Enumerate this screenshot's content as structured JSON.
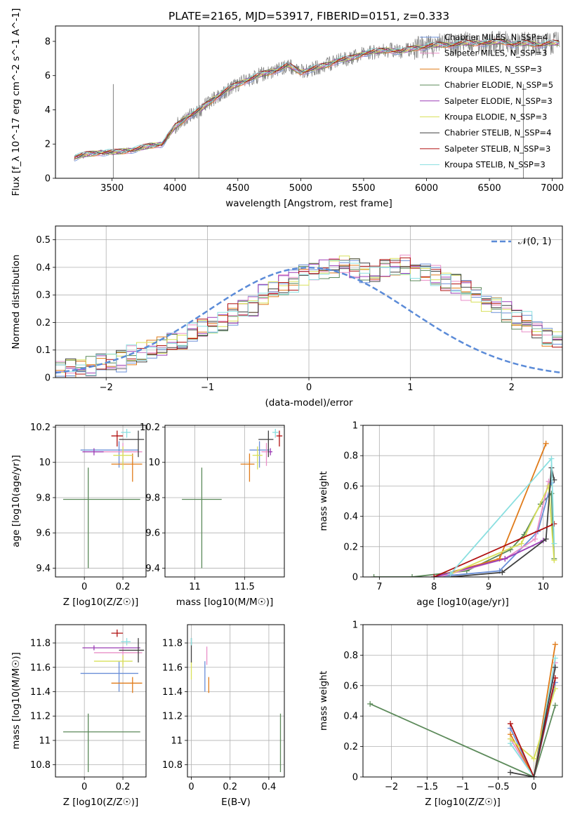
{
  "title": "PLATE=2165, MJD=53917, FIBERID=0151, z=0.333",
  "colors": {
    "Chabrier MILES": "#6a8fd8",
    "Salpeter MILES": "#e98fc8",
    "Kroupa MILES": "#e07b1a",
    "Chabrier ELODIE": "#5c8a5a",
    "Salpeter ELODIE": "#9b3db5",
    "Kroupa ELODIE": "#d8e05a",
    "Chabrier STELIB": "#404040",
    "Salpeter STELIB": "#b01010",
    "Kroupa STELIB": "#8adfe0",
    "data": "#808080",
    "normal": "#5b8bd8"
  },
  "chart_data": [
    {
      "id": "spectrum",
      "type": "line",
      "xlabel": "wavelength [Angstrom, rest frame]",
      "ylabel": "Flux [f_λ 10^-17 erg cm^-2 s^-1 A^-1]",
      "xlim": [
        3050,
        7080
      ],
      "ylim": [
        0,
        8.9
      ],
      "xticks": [
        3500,
        4000,
        4500,
        5000,
        5500,
        6000,
        6500,
        7000
      ],
      "yticks": [
        0,
        2,
        4,
        6,
        8
      ],
      "grid": false,
      "legend_position": "top-right",
      "legend": [
        {
          "label": "Chabrier MILES, N_SSP=4",
          "color_key": "Chabrier MILES"
        },
        {
          "label": "Salpeter MILES, N_SSP=3",
          "color_key": "Salpeter MILES"
        },
        {
          "label": "Kroupa MILES, N_SSP=3",
          "color_key": "Kroupa MILES"
        },
        {
          "label": "Chabrier ELODIE, N_SSP=5",
          "color_key": "Chabrier ELODIE"
        },
        {
          "label": "Salpeter ELODIE, N_SSP=3",
          "color_key": "Salpeter ELODIE"
        },
        {
          "label": "Kroupa ELODIE, N_SSP=3",
          "color_key": "Kroupa ELODIE"
        },
        {
          "label": "Chabrier STELIB, N_SSP=4",
          "color_key": "Chabrier STELIB"
        },
        {
          "label": "Salpeter STELIB, N_SSP=3",
          "color_key": "Salpeter STELIB"
        },
        {
          "label": "Kroupa STELIB, N_SSP=3",
          "color_key": "Kroupa STELIB"
        }
      ],
      "continuum": {
        "x": [
          3200,
          3300,
          3400,
          3500,
          3600,
          3700,
          3800,
          3900,
          4000,
          4100,
          4200,
          4300,
          4400,
          4500,
          4600,
          4700,
          4800,
          4900,
          5000,
          5100,
          5200,
          5300,
          5400,
          5500,
          5600,
          5700,
          5800,
          5900,
          6000,
          6100,
          6200,
          6300,
          6400,
          6500,
          6600,
          6700,
          6800,
          6900,
          7000,
          7050
        ],
        "y": [
          1.2,
          1.4,
          1.5,
          1.5,
          1.6,
          1.7,
          1.9,
          2.0,
          3.0,
          3.6,
          4.0,
          4.6,
          5.1,
          5.5,
          5.8,
          6.1,
          6.3,
          6.6,
          6.2,
          6.4,
          6.6,
          6.9,
          7.0,
          7.3,
          7.4,
          7.5,
          7.4,
          7.6,
          7.7,
          7.8,
          7.8,
          7.9,
          7.9,
          7.9,
          8.0,
          7.8,
          7.9,
          7.8,
          7.9,
          7.9
        ]
      },
      "data_gaps": [
        3510,
        4190,
        6770
      ]
    },
    {
      "id": "residual-hist",
      "type": "line",
      "xlabel": "(data-model)/error",
      "ylabel": "Normed distribution",
      "xlim": [
        -2.5,
        2.5
      ],
      "ylim": [
        0,
        0.55
      ],
      "xticks": [
        -2,
        -1,
        0,
        1,
        2
      ],
      "yticks": [
        0.0,
        0.1,
        0.2,
        0.3,
        0.4,
        0.5
      ],
      "grid": true,
      "legend_position": "top-right",
      "legend_label": "𝒩(0, 1)",
      "bin_width": 0.1,
      "bin_start": -2.5,
      "base_values": [
        0.02,
        0.03,
        0.03,
        0.04,
        0.05,
        0.05,
        0.06,
        0.08,
        0.09,
        0.1,
        0.11,
        0.13,
        0.14,
        0.16,
        0.18,
        0.19,
        0.21,
        0.23,
        0.25,
        0.26,
        0.3,
        0.32,
        0.34,
        0.35,
        0.37,
        0.38,
        0.39,
        0.4,
        0.41,
        0.4,
        0.38,
        0.38,
        0.39,
        0.4,
        0.41,
        0.39,
        0.38,
        0.37,
        0.35,
        0.34,
        0.32,
        0.3,
        0.27,
        0.26,
        0.24,
        0.21,
        0.2,
        0.17,
        0.14,
        0.13,
        0.12,
        0.1,
        0.09,
        0.07,
        0.06,
        0.05,
        0.04,
        0.03,
        0.03,
        0.02
      ]
    },
    {
      "id": "age-vs-z",
      "type": "scatter",
      "xlabel": "Z [log10(Z/Z☉)]",
      "ylabel": "age  [log10(age/yr)]",
      "xlim": [
        -0.15,
        0.32
      ],
      "ylim": [
        9.35,
        10.21
      ],
      "xticks": [
        0.0,
        0.2
      ],
      "yticks": [
        9.4,
        9.6,
        9.8,
        10.0,
        10.2
      ],
      "grid": true,
      "points": [
        {
          "key": "Chabrier ELODIE",
          "x": 0.02,
          "xerr": [
            0.13,
            0.27
          ],
          "y": 9.79,
          "yerr": [
            0.39,
            0.18
          ]
        },
        {
          "key": "Chabrier MILES",
          "x": 0.18,
          "xerr": [
            0.2,
            0.1
          ],
          "y": 10.07,
          "yerr": [
            0.1,
            0.05
          ]
        },
        {
          "key": "Salpeter MILES",
          "x": 0.2,
          "xerr": [
            0.15,
            0.1
          ],
          "y": 10.06,
          "yerr": [
            0.08,
            0.05
          ]
        },
        {
          "key": "Kroupa MILES",
          "x": 0.25,
          "xerr": [
            0.11,
            0.05
          ],
          "y": 9.99,
          "yerr": [
            0.1,
            0.06
          ]
        },
        {
          "key": "Salpeter ELODIE",
          "x": 0.05,
          "xerr": [
            0.06,
            0.05
          ],
          "y": 10.06,
          "yerr": [
            0.02,
            0.02
          ]
        },
        {
          "key": "Kroupa ELODIE",
          "x": 0.2,
          "xerr": [
            0.05,
            0.05
          ],
          "y": 10.04,
          "yerr": [
            0.08,
            0.05
          ]
        },
        {
          "key": "Chabrier STELIB",
          "x": 0.28,
          "xerr": [
            0.1,
            0.03
          ],
          "y": 10.13,
          "yerr": [
            0.1,
            0.05
          ]
        },
        {
          "key": "Salpeter STELIB",
          "x": 0.17,
          "xerr": [
            0.03,
            0.03
          ],
          "y": 10.15,
          "yerr": [
            0.06,
            0.03
          ]
        },
        {
          "key": "Kroupa STELIB",
          "x": 0.22,
          "xerr": [
            0.03,
            0.02
          ],
          "y": 10.17,
          "yerr": [
            0.03,
            0.02
          ]
        }
      ]
    },
    {
      "id": "age-vs-mass",
      "type": "scatter",
      "xlabel": "mass [log10(M/M☉)]",
      "ylabel": "",
      "xlim": [
        10.7,
        11.9
      ],
      "ylim": [
        9.35,
        10.21
      ],
      "xticks": [
        11.0,
        11.5
      ],
      "yticks": [
        9.4,
        9.6,
        9.8,
        10.0,
        10.2
      ],
      "grid": true,
      "points": [
        {
          "key": "Chabrier ELODIE",
          "x": 11.07,
          "xerr": [
            0.2,
            0.2
          ],
          "y": 9.79,
          "yerr": [
            0.39,
            0.18
          ]
        },
        {
          "key": "Chabrier MILES",
          "x": 11.65,
          "xerr": [
            0.1,
            0.1
          ],
          "y": 10.07,
          "yerr": [
            0.1,
            0.05
          ]
        },
        {
          "key": "Salpeter MILES",
          "x": 11.72,
          "xerr": [
            0.05,
            0.05
          ],
          "y": 10.06,
          "yerr": [
            0.08,
            0.05
          ]
        },
        {
          "key": "Kroupa MILES",
          "x": 11.55,
          "xerr": [
            0.09,
            0.05
          ],
          "y": 9.99,
          "yerr": [
            0.1,
            0.06
          ]
        },
        {
          "key": "Salpeter ELODIE",
          "x": 11.76,
          "xerr": [
            0.02,
            0.02
          ],
          "y": 10.06,
          "yerr": [
            0.02,
            0.02
          ]
        },
        {
          "key": "Kroupa ELODIE",
          "x": 11.63,
          "xerr": [
            0.05,
            0.05
          ],
          "y": 10.04,
          "yerr": [
            0.08,
            0.05
          ]
        },
        {
          "key": "Chabrier STELIB",
          "x": 11.74,
          "xerr": [
            0.1,
            0.05
          ],
          "y": 10.13,
          "yerr": [
            0.1,
            0.05
          ]
        },
        {
          "key": "Salpeter STELIB",
          "x": 11.85,
          "xerr": [
            0.03,
            0.03
          ],
          "y": 10.15,
          "yerr": [
            0.06,
            0.03
          ]
        },
        {
          "key": "Kroupa STELIB",
          "x": 11.81,
          "xerr": [
            0.03,
            0.03
          ],
          "y": 10.17,
          "yerr": [
            0.03,
            0.02
          ]
        }
      ]
    },
    {
      "id": "weight-vs-age",
      "type": "line",
      "xlabel": "age  [log10(age/yr)]",
      "ylabel": "mass weight",
      "xlim": [
        6.7,
        10.35
      ],
      "ylim": [
        0,
        1.0
      ],
      "xticks": [
        7,
        8,
        9,
        10
      ],
      "yticks": [
        0.0,
        0.2,
        0.4,
        0.6,
        0.8,
        1.0
      ],
      "grid": true,
      "series": [
        {
          "key": "Chabrier ELODIE",
          "x": [
            6.9,
            7.6,
            8.6,
            9.4,
            9.65,
            9.95,
            10.15,
            10.2
          ],
          "y": [
            0.0,
            0.0,
            0.04,
            0.18,
            0.28,
            0.48,
            0.55,
            0.12
          ]
        },
        {
          "key": "Chabrier MILES",
          "x": [
            8.0,
            9.2,
            9.9,
            10.15
          ],
          "y": [
            0.0,
            0.04,
            0.3,
            0.62
          ]
        },
        {
          "key": "Salpeter MILES",
          "x": [
            8.1,
            9.3,
            9.85,
            10.1
          ],
          "y": [
            0.0,
            0.12,
            0.25,
            0.63
          ]
        },
        {
          "key": "Kroupa MILES",
          "x": [
            8.0,
            9.2,
            10.05
          ],
          "y": [
            0.0,
            0.12,
            0.88
          ]
        },
        {
          "key": "Salpeter ELODIE",
          "x": [
            8.0,
            9.3,
            10.0
          ],
          "y": [
            0.0,
            0.12,
            0.24
          ]
        },
        {
          "key": "Kroupa ELODIE",
          "x": [
            8.3,
            9.6,
            10.1,
            10.2
          ],
          "y": [
            0.02,
            0.22,
            0.6,
            0.11
          ]
        },
        {
          "key": "Chabrier STELIB",
          "x": [
            8.3,
            9.25,
            10.05,
            10.15,
            10.2
          ],
          "y": [
            0.0,
            0.03,
            0.25,
            0.72,
            0.64
          ]
        },
        {
          "key": "Salpeter STELIB",
          "x": [
            8.0,
            10.2
          ],
          "y": [
            0.0,
            0.35
          ]
        },
        {
          "key": "Kroupa STELIB",
          "x": [
            8.3,
            10.15,
            10.2
          ],
          "y": [
            0.02,
            0.78,
            0.22
          ]
        }
      ]
    },
    {
      "id": "mass-vs-z",
      "type": "scatter",
      "xlabel": "Z [log10(Z/Z☉)]",
      "ylabel": "mass [log10(M/M☉)]",
      "xlim": [
        -0.15,
        0.32
      ],
      "ylim": [
        10.7,
        11.95
      ],
      "xticks": [
        0.0,
        0.2
      ],
      "yticks": [
        10.8,
        11.0,
        11.2,
        11.4,
        11.6,
        11.8
      ],
      "grid": true,
      "points": [
        {
          "key": "Chabrier ELODIE",
          "x": 0.02,
          "xerr": [
            0.13,
            0.27
          ],
          "y": 11.07,
          "yerr": [
            0.33,
            0.15
          ]
        },
        {
          "key": "Chabrier MILES",
          "x": 0.18,
          "xerr": [
            0.2,
            0.1
          ],
          "y": 11.55,
          "yerr": [
            0.15,
            0.1
          ]
        },
        {
          "key": "Salpeter MILES",
          "x": 0.2,
          "xerr": [
            0.15,
            0.1
          ],
          "y": 11.72,
          "yerr": [
            0.1,
            0.05
          ]
        },
        {
          "key": "Kroupa MILES",
          "x": 0.25,
          "xerr": [
            0.11,
            0.05
          ],
          "y": 11.47,
          "yerr": [
            0.08,
            0.05
          ]
        },
        {
          "key": "Salpeter ELODIE",
          "x": 0.05,
          "xerr": [
            0.06,
            0.24
          ],
          "y": 11.76,
          "yerr": [
            0.02,
            0.02
          ]
        },
        {
          "key": "Kroupa ELODIE",
          "x": 0.2,
          "xerr": [
            0.15,
            0.05
          ],
          "y": 11.65,
          "yerr": [
            0.05,
            0.05
          ]
        },
        {
          "key": "Chabrier STELIB",
          "x": 0.28,
          "xerr": [
            0.1,
            0.03
          ],
          "y": 11.74,
          "yerr": [
            0.1,
            0.1
          ]
        },
        {
          "key": "Salpeter STELIB",
          "x": 0.17,
          "xerr": [
            0.03,
            0.03
          ],
          "y": 11.88,
          "yerr": [
            0.03,
            0.03
          ]
        },
        {
          "key": "Kroupa STELIB",
          "x": 0.22,
          "xerr": [
            0.03,
            0.02
          ],
          "y": 11.81,
          "yerr": [
            0.03,
            0.03
          ]
        }
      ]
    },
    {
      "id": "mass-vs-ebv",
      "type": "scatter",
      "xlabel": "E(B-V)",
      "ylabel": "",
      "xlim": [
        -0.02,
        0.48
      ],
      "ylim": [
        10.7,
        11.95
      ],
      "xticks": [
        0.0,
        0.2,
        0.4
      ],
      "yticks": [
        10.8,
        11.0,
        11.2,
        11.4,
        11.6,
        11.8
      ],
      "grid": true,
      "points": [
        {
          "key": "Chabrier ELODIE",
          "x": 0.46,
          "xerr": [
            0,
            0
          ],
          "y": 11.07,
          "yerr": [
            0.33,
            0.15
          ]
        },
        {
          "key": "Chabrier MILES",
          "x": 0.07,
          "xerr": [
            0,
            0
          ],
          "y": 11.55,
          "yerr": [
            0.15,
            0.1
          ]
        },
        {
          "key": "Salpeter MILES",
          "x": 0.08,
          "xerr": [
            0,
            0
          ],
          "y": 11.72,
          "yerr": [
            0.1,
            0.05
          ]
        },
        {
          "key": "Kroupa MILES",
          "x": 0.09,
          "xerr": [
            0,
            0
          ],
          "y": 11.47,
          "yerr": [
            0.08,
            0.05
          ]
        },
        {
          "key": "Kroupa ELODIE",
          "x": 0.0,
          "xerr": [
            0,
            0
          ],
          "y": 11.6,
          "yerr": [
            0.1,
            0.05
          ]
        },
        {
          "key": "Chabrier STELIB",
          "x": 0.0,
          "xerr": [
            0,
            0
          ],
          "y": 11.74,
          "yerr": [
            0.1,
            0.1
          ]
        },
        {
          "key": "Kroupa STELIB",
          "x": 0.0,
          "xerr": [
            0,
            0
          ],
          "y": 11.81,
          "yerr": [
            0.03,
            0.03
          ]
        }
      ]
    },
    {
      "id": "weight-vs-z",
      "type": "line",
      "xlabel": "Z [log10(Z/Z☉)]",
      "ylabel": "mass weight",
      "xlim": [
        -2.4,
        0.4
      ],
      "ylim": [
        0,
        1.0
      ],
      "xticks": [
        -2.0,
        -1.5,
        -1.0,
        -0.5,
        0.0
      ],
      "yticks": [
        0.0,
        0.2,
        0.4,
        0.6,
        0.8,
        1.0
      ],
      "grid": true,
      "series": [
        {
          "key": "Chabrier ELODIE",
          "x": [
            -2.3,
            0.0,
            0.3
          ],
          "y": [
            0.48,
            0.0,
            0.47
          ]
        },
        {
          "key": "Salpeter MILES",
          "x": [
            -0.33,
            0.0,
            0.3
          ],
          "y": [
            0.25,
            0.0,
            0.75
          ]
        },
        {
          "key": "Chabrier MILES",
          "x": [
            -0.33,
            0.0,
            0.3
          ],
          "y": [
            0.32,
            0.0,
            0.62
          ]
        },
        {
          "key": "Kroupa MILES",
          "x": [
            -0.33,
            0.0,
            0.3
          ],
          "y": [
            0.28,
            0.0,
            0.87
          ]
        },
        {
          "key": "Kroupa STELIB",
          "x": [
            -0.33,
            0.0,
            0.3
          ],
          "y": [
            0.22,
            0.0,
            0.78
          ]
        },
        {
          "key": "Kroupa ELODIE",
          "x": [
            -0.33,
            0.0,
            0.3
          ],
          "y": [
            0.25,
            0.12,
            0.58
          ]
        },
        {
          "key": "Salpeter STELIB",
          "x": [
            -0.33,
            0.0,
            0.3
          ],
          "y": [
            0.35,
            0.0,
            0.65
          ]
        },
        {
          "key": "Chabrier STELIB",
          "x": [
            -0.33,
            0.0,
            0.3
          ],
          "y": [
            0.03,
            0.0,
            0.72
          ]
        }
      ]
    }
  ]
}
